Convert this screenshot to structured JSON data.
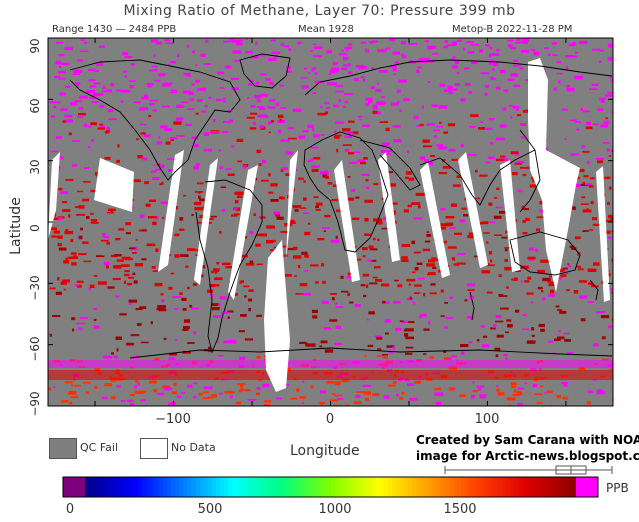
{
  "header": {
    "title": "Mixing Ratio of Methane, Layer 70: Pressure 399 mb",
    "range": "Range 1430 — 2484 PPB",
    "mean": "Mean 1928",
    "satellite_date": "Metop-B 2022-11-28 PM"
  },
  "axes": {
    "ylabel": "Latitude",
    "xlabel": "Longitude",
    "yticks": [
      "90",
      "60",
      "30",
      "0",
      "−30",
      "−60",
      "−90"
    ],
    "xticks": [
      "−100",
      "0",
      "100"
    ]
  },
  "legend": {
    "qc_fail": "QC Fail",
    "no_data": "No Data",
    "qc_fail_color": "#7f7f7f",
    "no_data_color": "#ffffff"
  },
  "credit": {
    "line1": "Created by Sam Carana with NOAA",
    "line2": "image for Arctic-news.blogspot.com"
  },
  "colorbar": {
    "ticks": [
      "0",
      "500",
      "1000",
      "1500"
    ],
    "unit": "PPB",
    "colors": [
      "#7f007f",
      "#00008f",
      "#0000ff",
      "#0080ff",
      "#00ffff",
      "#00ff80",
      "#80ff00",
      "#ffff00",
      "#ffa000",
      "#ff4000",
      "#e00000",
      "#900000",
      "#ff00ff"
    ]
  },
  "palette": {
    "gray": "#808080",
    "magenta": "#ff00ff",
    "red": "#e00000",
    "dark_red": "#a00000",
    "orange_red": "#ff3000"
  }
}
